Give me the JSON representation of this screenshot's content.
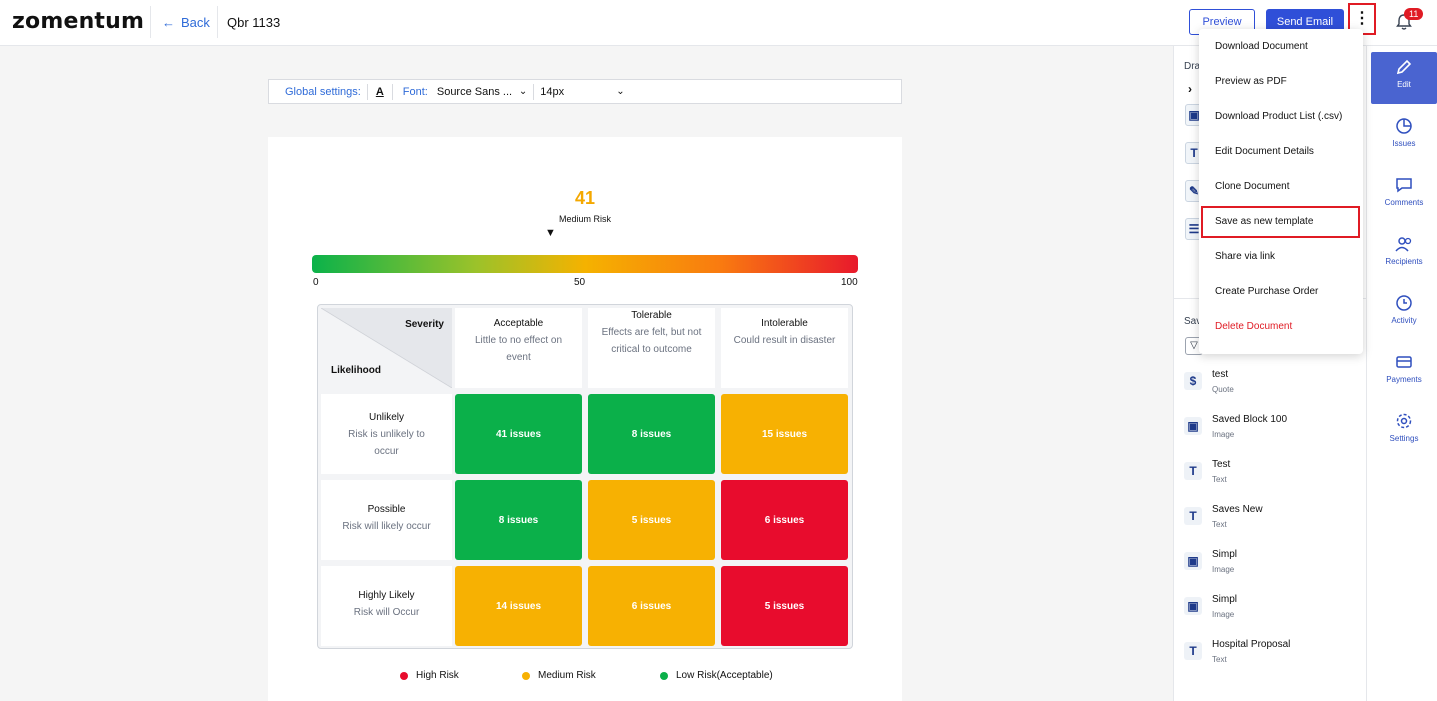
{
  "header": {
    "logo": "zomentum",
    "back_label": "Back",
    "doc_title": "Qbr 1133",
    "preview_label": "Preview",
    "send_label": "Send Email",
    "more_label": "⋮",
    "notification_count": "11"
  },
  "global_settings": {
    "label": "Global settings:",
    "text_color_glyph": "A",
    "font_label": "Font:",
    "font_value": "Source Sans ...",
    "size_value": "14px"
  },
  "risk": {
    "score": "41",
    "score_label": "Medium Risk",
    "pointer": "▼",
    "scale_min": "0",
    "scale_mid": "50",
    "scale_max": "100"
  },
  "matrix": {
    "corner_top": "Severity",
    "corner_bottom": "Likelihood",
    "columns": [
      {
        "title": "Acceptable",
        "desc": "Little to no effect on event"
      },
      {
        "title": "Tolerable",
        "desc": "Effects are felt, but not critical to outcome"
      },
      {
        "title": "Intolerable",
        "desc": "Could result in disaster"
      }
    ],
    "rows": [
      {
        "title": "Unlikely",
        "desc": "Risk is unlikely to occur",
        "cells": [
          {
            "label": "41 issues",
            "color": "#0bb04a"
          },
          {
            "label": "8 issues",
            "color": "#0bb04a"
          },
          {
            "label": "15 issues",
            "color": "#f7b102"
          }
        ]
      },
      {
        "title": "Possible",
        "desc": "Risk will likely occur",
        "cells": [
          {
            "label": "8 issues",
            "color": "#0bb04a"
          },
          {
            "label": "5 issues",
            "color": "#f7b102"
          },
          {
            "label": "6 issues",
            "color": "#e80c2d"
          }
        ]
      },
      {
        "title": "Highly Likely",
        "desc": "Risk will Occur",
        "cells": [
          {
            "label": "14 issues",
            "color": "#f7b102"
          },
          {
            "label": "6 issues",
            "color": "#f7b102"
          },
          {
            "label": "5 issues",
            "color": "#e80c2d"
          }
        ]
      }
    ]
  },
  "legend": [
    {
      "label": "High Risk",
      "color": "#e80c2d"
    },
    {
      "label": "Medium Risk",
      "color": "#f7b102"
    },
    {
      "label": "Low Risk(Acceptable)",
      "color": "#0bb04a"
    }
  ],
  "right_panel": {
    "section_title": "Dra",
    "saved_title": "Sav",
    "saved_items": [
      {
        "name": "test",
        "type": "Quote",
        "icon": "dollar-icon",
        "glyph": "$"
      },
      {
        "name": "Saved Block 100",
        "type": "Image",
        "icon": "image-icon",
        "glyph": "▣"
      },
      {
        "name": "Test",
        "type": "Text",
        "icon": "text-icon",
        "glyph": "T"
      },
      {
        "name": "Saves New",
        "type": "Text",
        "icon": "text-icon",
        "glyph": "T"
      },
      {
        "name": "Simpl",
        "type": "Image",
        "icon": "image-icon",
        "glyph": "▣"
      },
      {
        "name": "Simpl",
        "type": "Image",
        "icon": "image-icon",
        "glyph": "▣"
      },
      {
        "name": "Hospital Proposal",
        "type": "Text",
        "icon": "text-icon",
        "glyph": "T"
      }
    ]
  },
  "rail": [
    {
      "label": "Edit",
      "icon": "pencil-icon",
      "active": true
    },
    {
      "label": "Issues",
      "icon": "pie-chart-icon"
    },
    {
      "label": "Comments",
      "icon": "comment-icon"
    },
    {
      "label": "Recipients",
      "icon": "users-icon"
    },
    {
      "label": "Activity",
      "icon": "clock-icon"
    },
    {
      "label": "Payments",
      "icon": "card-icon"
    },
    {
      "label": "Settings",
      "icon": "gear-icon"
    }
  ],
  "menu": {
    "items": [
      "Download Document",
      "Preview as PDF",
      "Download Product List (.csv)",
      "Edit Document Details",
      "Clone Document",
      "Save as new template",
      "Share via link",
      "Create Purchase Order",
      "Delete Document"
    ],
    "highlighted_index": 5,
    "danger_index": 8
  }
}
